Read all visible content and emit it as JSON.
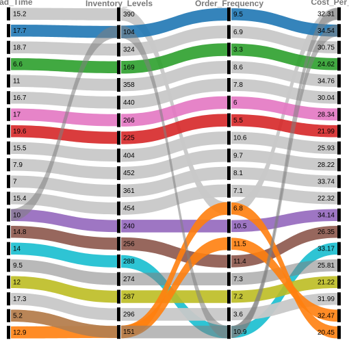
{
  "chart_data": {
    "type": "parallel_categories",
    "dimensions": [
      {
        "label": "_Lead_Time",
        "values": [
          "15.2",
          "17.7",
          "18.7",
          "6.6",
          "11",
          "16.7",
          "17",
          "19.6",
          "15.5",
          "7.9",
          "7",
          "15.4",
          "10",
          "14.8",
          "14",
          "9.5",
          "12",
          "17.3",
          "5.2",
          "12.9"
        ]
      },
      {
        "label": "Inventory_Levels",
        "values": [
          "390",
          "104",
          "324",
          "169",
          "358",
          "440",
          "266",
          "225",
          "404",
          "452",
          "361",
          "454",
          "240",
          "256",
          "288",
          "274",
          "287",
          "296",
          "151"
        ]
      },
      {
        "label": "Order_Frequency",
        "values": [
          "9.5",
          "6.9",
          "3.3",
          "8.6",
          "7.8",
          "6",
          "5.5",
          "10.6",
          "9.7",
          "8.1",
          "7.1",
          "6.8",
          "10.5",
          "11.5",
          "11.4",
          "7.3",
          "7.2",
          "3.6",
          "10.9"
        ]
      },
      {
        "label": "Cost_Per_",
        "values": [
          "32.31",
          "34.54",
          "30.75",
          "24.62",
          "34.76",
          "30.04",
          "28.34",
          "21.99",
          "25.93",
          "28.22",
          "33.74",
          "22.32",
          "34.14",
          "26.35",
          "33.17",
          "25.81",
          "21.22",
          "31.99",
          "32.47",
          "20.45"
        ]
      }
    ],
    "paths": [
      {
        "indices": [
          0,
          0,
          11,
          0
        ],
        "color": "#c8c8c8"
      },
      {
        "indices": [
          1,
          1,
          0,
          1
        ],
        "color": "#1f77b4"
      },
      {
        "indices": [
          2,
          2,
          1,
          2
        ],
        "color": "#c8c8c8"
      },
      {
        "indices": [
          3,
          3,
          2,
          3
        ],
        "color": "#2ca02c"
      },
      {
        "indices": [
          4,
          4,
          3,
          4
        ],
        "color": "#c8c8c8"
      },
      {
        "indices": [
          5,
          5,
          4,
          5
        ],
        "color": "#c8c8c8"
      },
      {
        "indices": [
          6,
          6,
          5,
          6
        ],
        "color": "#e377c2"
      },
      {
        "indices": [
          7,
          7,
          6,
          7
        ],
        "color": "#d62728"
      },
      {
        "indices": [
          8,
          8,
          7,
          8
        ],
        "color": "#c8c8c8"
      },
      {
        "indices": [
          9,
          9,
          8,
          9
        ],
        "color": "#c8c8c8"
      },
      {
        "indices": [
          10,
          10,
          9,
          10
        ],
        "color": "#c8c8c8"
      },
      {
        "indices": [
          11,
          11,
          10,
          11
        ],
        "color": "#c8c8c8"
      },
      {
        "indices": [
          12,
          12,
          12,
          12
        ],
        "color": "#9467bd"
      },
      {
        "indices": [
          13,
          13,
          14,
          13
        ],
        "color": "#8c564b"
      },
      {
        "indices": [
          14,
          14,
          18,
          14
        ],
        "color": "#17becf"
      },
      {
        "indices": [
          15,
          15,
          15,
          15
        ],
        "color": "#7f7f7f"
      },
      {
        "indices": [
          16,
          16,
          16,
          16
        ],
        "color": "#bcbd22"
      },
      {
        "indices": [
          17,
          17,
          17,
          17
        ],
        "color": "#c8c8c8"
      },
      {
        "indices": [
          18,
          18,
          13,
          18
        ],
        "color": "#ff7f0e"
      },
      {
        "indices": [
          19,
          18,
          11,
          19
        ],
        "color": "#ff7f0e"
      },
      {
        "indices": [
          12,
          1,
          18,
          0
        ],
        "color": "#7f7f7f"
      },
      {
        "indices": [
          18,
          18,
          18,
          1
        ],
        "color": "#7f7f7f"
      }
    ]
  }
}
